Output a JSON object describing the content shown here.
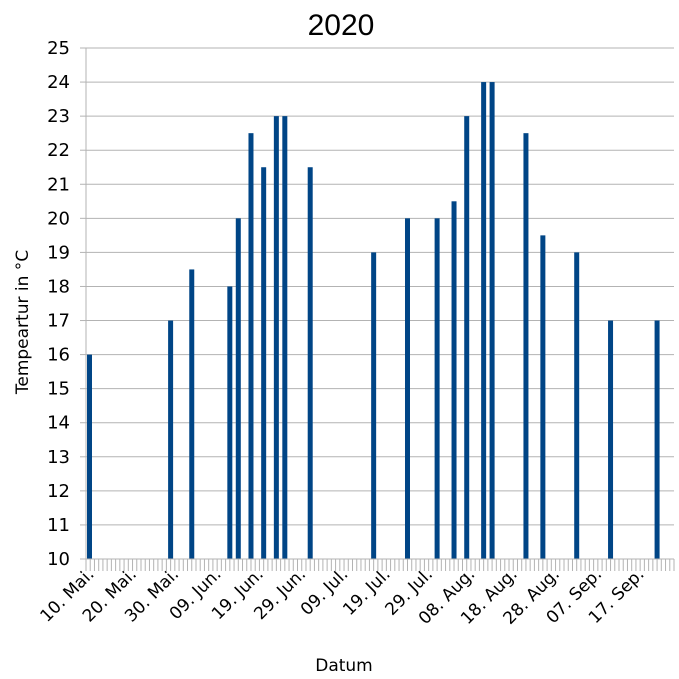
{
  "chart_data": {
    "type": "bar",
    "title": "2020",
    "xlabel": "Datum",
    "ylabel": "Tempeartur in °C",
    "ylim": [
      10,
      25
    ],
    "yticks": [
      10,
      11,
      12,
      13,
      14,
      15,
      16,
      17,
      18,
      19,
      20,
      21,
      22,
      23,
      24,
      25
    ],
    "xlim": [
      "2020-05-10",
      "2020-09-26"
    ],
    "xtick_labels": [
      "10. Mai.",
      "20. Mai.",
      "30. Mai.",
      "09. Jun.",
      "19. Jun.",
      "29. Jun.",
      "09. Jul.",
      "19. Jul.",
      "29. Jul.",
      "08. Aug.",
      "18. Aug.",
      "28. Aug.",
      "07. Sep.",
      "17. Sep."
    ],
    "xtick_dates": [
      "2020-05-10",
      "2020-05-20",
      "2020-05-30",
      "2020-06-09",
      "2020-06-19",
      "2020-06-29",
      "2020-07-09",
      "2020-07-19",
      "2020-07-29",
      "2020-08-08",
      "2020-08-18",
      "2020-08-28",
      "2020-09-07",
      "2020-09-17"
    ],
    "grid": true,
    "bar_color": "#004586",
    "series": [
      {
        "x": [
          "2020-05-10",
          "2020-05-30",
          "2020-06-04",
          "2020-06-13",
          "2020-06-15",
          "2020-06-18",
          "2020-06-21",
          "2020-06-24",
          "2020-06-26",
          "2020-07-02",
          "2020-07-17",
          "2020-07-25",
          "2020-08-01",
          "2020-08-05",
          "2020-08-08",
          "2020-08-12",
          "2020-08-14",
          "2020-08-22",
          "2020-08-26",
          "2020-09-03",
          "2020-09-11",
          "2020-09-22"
        ],
        "values": [
          16,
          17,
          18.5,
          18,
          20,
          22.5,
          21.5,
          23,
          23,
          21.5,
          19,
          20,
          20,
          20.5,
          23,
          24,
          24,
          22.5,
          19.5,
          19,
          17,
          17
        ]
      }
    ]
  }
}
